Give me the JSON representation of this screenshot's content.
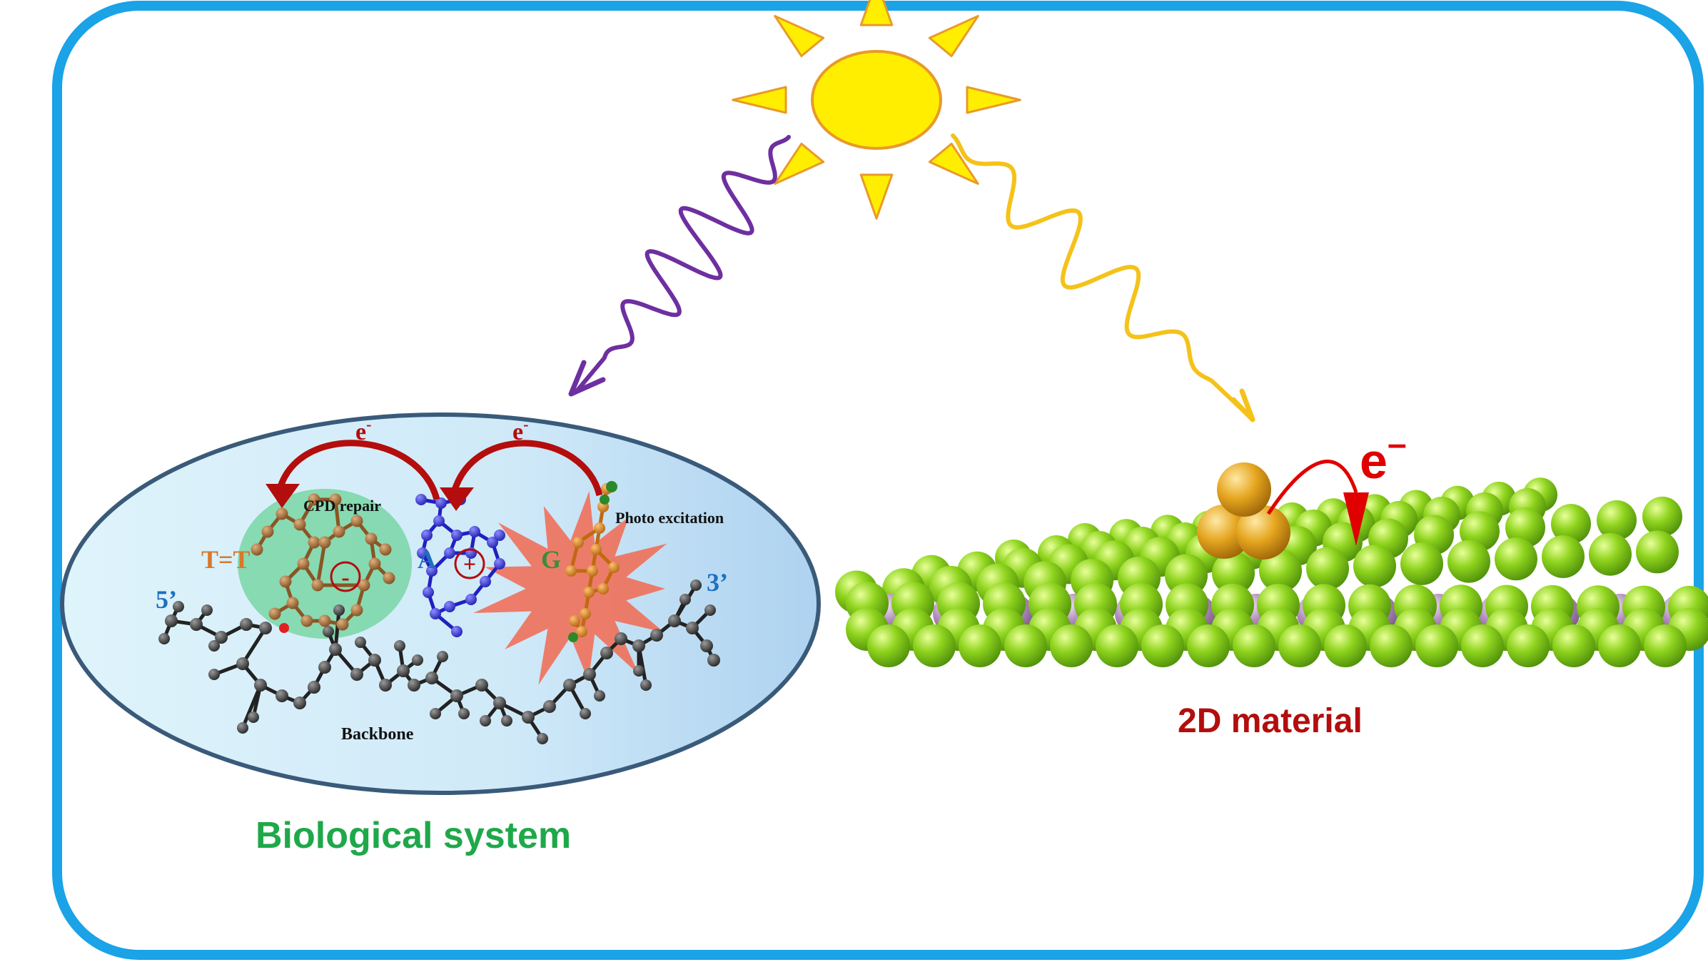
{
  "colors": {
    "frame": "#1aa3e6",
    "sun_fill": "#ffee00",
    "sun_stroke": "#e89a2a",
    "uv_wave": "#6e2fa0",
    "visible_wave": "#f5c21a",
    "electron_arrow": "#b30d0d",
    "green_atom": "#7cc81e",
    "purple_atom": "#b48cc0",
    "gold_atom": "#e0a21f",
    "label_green": "#1fa84a",
    "label_red": "#b30d0d",
    "label_orange": "#d9782a",
    "label_blue": "#1e6fc0",
    "label_green_dark": "#3c8c3c"
  },
  "bio": {
    "electron_left": "e",
    "electron_right": "e",
    "electron_sup": "-",
    "cpd_repair": "CPD repair",
    "photo_excitation": "Photo excitation",
    "tt_label": "T=T",
    "a_label": "A",
    "g_label": "G",
    "five_prime": "5’",
    "three_prime": "3’",
    "minus_sign": "-",
    "plus_sign": "+",
    "backbone": "Backbone",
    "caption": "Biological system"
  },
  "material": {
    "electron_label": "e",
    "electron_sup": "–",
    "caption": "2D material"
  }
}
